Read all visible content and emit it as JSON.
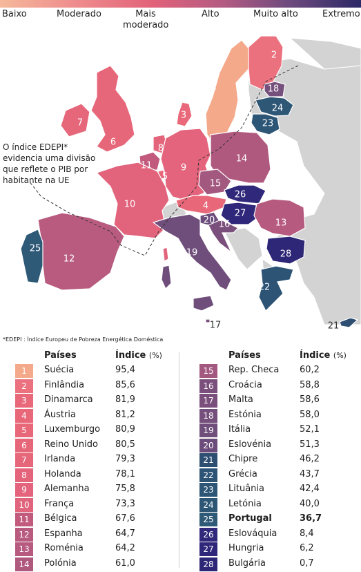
{
  "legend": {
    "labels": [
      "Baixo",
      "Moderado",
      "Mais moderado",
      "Alto",
      "Muito alto",
      "Extremo"
    ]
  },
  "note": "O índice EDEPI* evidencia uma divisão que reflete o PIB por habitante na UE",
  "footnote": "*EDEPI : Índice Europeu de Pobreza Energética Doméstica",
  "table": {
    "header_country": "Países",
    "header_index": "Índice",
    "header_unit": "(%)"
  },
  "colors": {
    "1": "#f4a98a",
    "2": "#ec717e",
    "3": "#e9697a",
    "4": "#e8687a",
    "5": "#e8687a",
    "6": "#e7677a",
    "7": "#e6667a",
    "8": "#e4647b",
    "9": "#e3647c",
    "10": "#e1637c",
    "11": "#c15a7d",
    "12": "#b85b7f",
    "13": "#b75a7f",
    "14": "#b0597f",
    "15": "#a3587f",
    "16": "#7b4f7c",
    "17": "#7a4f7b",
    "18": "#76507c",
    "19": "#6f4e7b",
    "20": "#6b4c7b",
    "21": "#2e4f71",
    "22": "#2d5475",
    "23": "#2d5575",
    "24": "#2e5776",
    "25": "#2f5a77",
    "26": "#30287a",
    "27": "#2f2779",
    "28": "#2e2676"
  },
  "rows": [
    {
      "rank": "1",
      "country": "Suécia",
      "value": "95,4"
    },
    {
      "rank": "2",
      "country": "Finlândia",
      "value": "85,6"
    },
    {
      "rank": "3",
      "country": "Dinamarca",
      "value": "81,9"
    },
    {
      "rank": "4",
      "country": "Áustria",
      "value": "81,2"
    },
    {
      "rank": "5",
      "country": "Luxemburgo",
      "value": "80,9"
    },
    {
      "rank": "6",
      "country": "Reino Unido",
      "value": "80,5"
    },
    {
      "rank": "7",
      "country": "Irlanda",
      "value": "79,3"
    },
    {
      "rank": "8",
      "country": "Holanda",
      "value": "78,1"
    },
    {
      "rank": "9",
      "country": "Alemanha",
      "value": "75,8"
    },
    {
      "rank": "10",
      "country": "França",
      "value": "73,3"
    },
    {
      "rank": "11",
      "country": "Bélgica",
      "value": "67,6"
    },
    {
      "rank": "12",
      "country": "Espanha",
      "value": "64,7"
    },
    {
      "rank": "13",
      "country": "Roménia",
      "value": "64,2"
    },
    {
      "rank": "14",
      "country": "Polónia",
      "value": "61,0"
    },
    {
      "rank": "15",
      "country": "Rep. Checa",
      "value": "60,2"
    },
    {
      "rank": "16",
      "country": "Croácia",
      "value": "58,8"
    },
    {
      "rank": "17",
      "country": "Malta",
      "value": "58,6"
    },
    {
      "rank": "18",
      "country": "Estónia",
      "value": "58,0"
    },
    {
      "rank": "19",
      "country": "Itália",
      "value": "52,1"
    },
    {
      "rank": "20",
      "country": "Eslovénia",
      "value": "51,3"
    },
    {
      "rank": "21",
      "country": "Chipre",
      "value": "46,2"
    },
    {
      "rank": "22",
      "country": "Grécia",
      "value": "43,7"
    },
    {
      "rank": "23",
      "country": "Lituânia",
      "value": "42,4"
    },
    {
      "rank": "24",
      "country": "Letónia",
      "value": "40,0"
    },
    {
      "rank": "25",
      "country": "Portugal",
      "value": "36,7",
      "highlight": true
    },
    {
      "rank": "26",
      "country": "Eslováquia",
      "value": "8,4"
    },
    {
      "rank": "27",
      "country": "Hungria",
      "value": "6,2"
    },
    {
      "rank": "28",
      "country": "Bulgária",
      "value": "0,7"
    }
  ]
}
